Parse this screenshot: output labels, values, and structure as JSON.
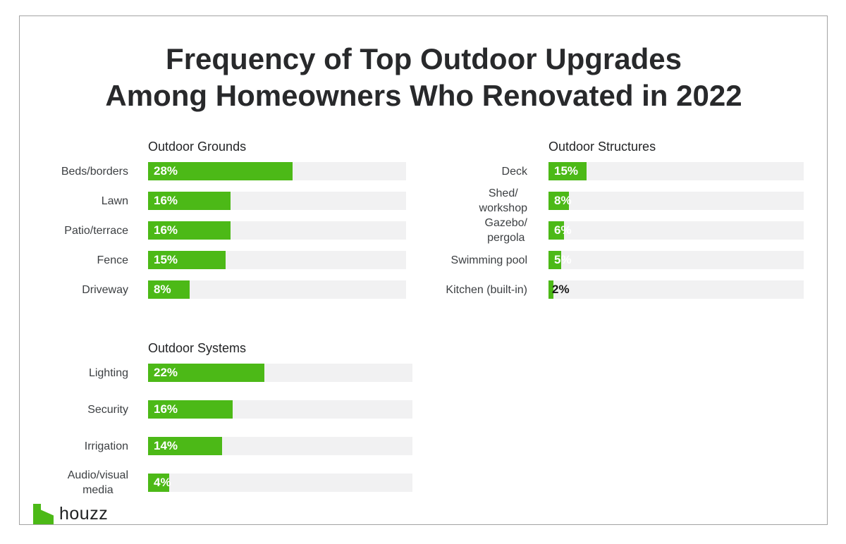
{
  "title": {
    "line1": "Frequency of Top Outdoor Upgrades",
    "line2": "Among Homeowners Who Renovated in 2022"
  },
  "logo": {
    "text": "houzz",
    "icon": "houzz-house-icon",
    "icon_color": "#4cb917"
  },
  "colors": {
    "bar_green": "#4cb917",
    "track_gray": "#f1f1f2",
    "title_text": "#28292b",
    "category_text": "#3c3f42",
    "value_text_light": "#ffffff",
    "value_text_dark": "#181818",
    "frame_border": "#a3a3a3"
  },
  "chart_data": [
    {
      "type": "bar",
      "orientation": "horizontal",
      "title": "Outdoor Grounds",
      "categories": [
        "Beds/borders",
        "Lawn",
        "Patio/terrace",
        "Fence",
        "Driveway"
      ],
      "values": [
        28,
        16,
        16,
        15,
        8
      ],
      "value_labels": [
        "28%",
        "16%",
        "16%",
        "15%",
        "8%"
      ],
      "xlim": [
        0,
        50
      ],
      "value_label_position": "inside-left",
      "dark_label_indices": [],
      "grid": false,
      "legend": false
    },
    {
      "type": "bar",
      "orientation": "horizontal",
      "title": "Outdoor Structures",
      "categories": [
        "Deck",
        "Shed/\nworkshop",
        "Gazebo/\npergola",
        "Swimming pool",
        "Kitchen (built-in)"
      ],
      "values": [
        15,
        8,
        6,
        5,
        2
      ],
      "value_labels": [
        "15%",
        "8%",
        "6%",
        "5%",
        "2%"
      ],
      "xlim": [
        0,
        100
      ],
      "value_label_position": "inside-left",
      "dark_label_indices": [
        4
      ],
      "grid": false,
      "legend": false
    },
    {
      "type": "bar",
      "orientation": "horizontal",
      "title": "Outdoor Systems",
      "categories": [
        "Lighting",
        "Security",
        "Irrigation",
        "Audio/visual\nmedia"
      ],
      "values": [
        22,
        16,
        14,
        4
      ],
      "value_labels": [
        "22%",
        "16%",
        "14%",
        "4%"
      ],
      "xlim": [
        0,
        50
      ],
      "value_label_position": "inside-left",
      "dark_label_indices": [],
      "grid": false,
      "legend": false
    }
  ]
}
